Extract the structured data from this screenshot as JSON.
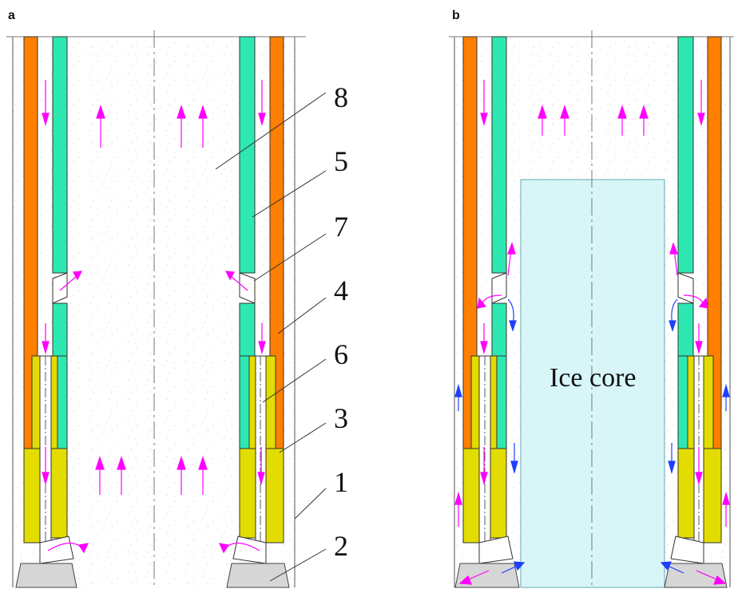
{
  "panels": {
    "a": {
      "letter": "a"
    },
    "b": {
      "letter": "b"
    }
  },
  "callouts": [
    "8",
    "5",
    "7",
    "4",
    "6",
    "3",
    "1",
    "2"
  ],
  "ice_core_label": "Ice core",
  "colors": {
    "outer_tube": "#ff7f00",
    "inner_tube": "#2ee8b2",
    "crown_body": "#e2dc00",
    "cutter": "#d6d6d6",
    "ice_core": "#d8f6f8",
    "flow_arrow": "#ff00ff",
    "return_arrow": "#1f3fff"
  }
}
